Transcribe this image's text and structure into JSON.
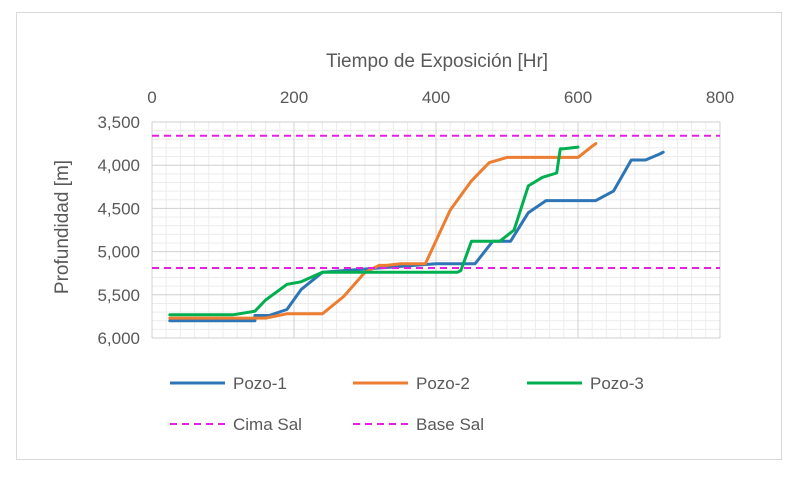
{
  "chart_data": {
    "type": "line",
    "title": "",
    "xlabel": "Tiempo de Exposición [Hr]",
    "ylabel": "Profundidad [m]",
    "xlim": [
      0,
      800
    ],
    "ylim": [
      3500,
      6000
    ],
    "y_inverted": true,
    "x_axis_position": "top",
    "x_ticks": [
      0,
      200,
      400,
      600,
      800
    ],
    "x_tick_labels": [
      "0",
      "200",
      "400",
      "600",
      "800"
    ],
    "y_ticks": [
      3500,
      4000,
      4500,
      5000,
      5500,
      6000
    ],
    "y_tick_labels": [
      "3,500",
      "4,000",
      "4,500",
      "5,000",
      "5,500",
      "6,000"
    ],
    "grid": true,
    "legend_position": "bottom",
    "series": [
      {
        "name": "Pozo-1",
        "color": "#2e75b6",
        "style": "solid",
        "x": [
          25,
          145,
          145,
          165,
          190,
          210,
          240,
          400,
          455,
          480,
          505,
          530,
          555,
          570,
          590,
          625,
          650,
          675,
          695,
          715,
          720
        ],
        "y": [
          5800,
          5800,
          5740,
          5740,
          5670,
          5440,
          5240,
          5140,
          5140,
          4880,
          4880,
          4550,
          4410,
          4410,
          4410,
          4410,
          4300,
          3940,
          3940,
          3870,
          3850
        ]
      },
      {
        "name": "Pozo-2",
        "color": "#ed7d31",
        "style": "solid",
        "x": [
          25,
          160,
          190,
          240,
          270,
          300,
          320,
          330,
          350,
          370,
          385,
          420,
          450,
          475,
          500,
          525,
          550,
          600,
          620,
          625
        ],
        "y": [
          5770,
          5770,
          5720,
          5720,
          5520,
          5240,
          5160,
          5160,
          5140,
          5140,
          5140,
          4520,
          4180,
          3970,
          3910,
          3910,
          3910,
          3910,
          3780,
          3750
        ]
      },
      {
        "name": "Pozo-3",
        "color": "#00b050",
        "style": "solid",
        "x": [
          25,
          115,
          145,
          160,
          190,
          210,
          240,
          275,
          300,
          325,
          360,
          410,
          430,
          435,
          450,
          470,
          490,
          510,
          530,
          550,
          570,
          575,
          580,
          600
        ],
        "y": [
          5730,
          5730,
          5690,
          5560,
          5380,
          5350,
          5240,
          5240,
          5240,
          5240,
          5240,
          5240,
          5240,
          5220,
          4880,
          4880,
          4880,
          4750,
          4240,
          4140,
          4090,
          3810,
          3810,
          3790
        ]
      },
      {
        "name": "Cima Sal",
        "color": "#e81fe3",
        "style": "dashed",
        "x": [
          0,
          800
        ],
        "y": [
          3660,
          3660
        ]
      },
      {
        "name": "Base Sal",
        "color": "#e81fe3",
        "style": "dashed",
        "x": [
          0,
          800
        ],
        "y": [
          5190,
          5190
        ]
      }
    ]
  }
}
